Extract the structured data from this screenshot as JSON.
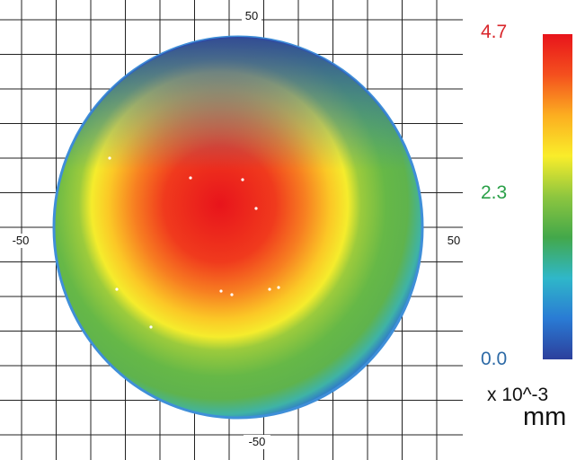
{
  "chart_data": {
    "type": "heatmap",
    "title": "",
    "xlabel": "",
    "ylabel": "",
    "xlim": [
      -75,
      75
    ],
    "ylim": [
      -70,
      70
    ],
    "grid": true,
    "axis_tick_labels": {
      "top": "50",
      "bottom": "-50",
      "left": "-50",
      "right": "50"
    },
    "colorbar": {
      "min": 0.0,
      "mid": 2.3,
      "max": 4.7,
      "labels": [
        "4.7",
        "2.3",
        "0.0"
      ],
      "label_colors": [
        "#d9262b",
        "#2aa048",
        "#2d6aa6"
      ],
      "scale_label": "x 10^-3",
      "unit": "mm",
      "colors": [
        "#e8141b",
        "#f4501e",
        "#fcae20",
        "#f9ed2a",
        "#8dc63f",
        "#43a84a",
        "#2fb7c9",
        "#2a7bd4",
        "#2c3f9c"
      ]
    },
    "surface": {
      "shape": "circular disc",
      "peak_value": 4.7,
      "peak_location": [
        -5,
        3
      ],
      "edge_value": 0.0,
      "radial_profile": [
        {
          "r": 0,
          "value": 4.7
        },
        {
          "r": 15,
          "value": 4.3
        },
        {
          "r": 28,
          "value": 3.6
        },
        {
          "r": 35,
          "value": 3.0
        },
        {
          "r": 45,
          "value": 2.3
        },
        {
          "r": 55,
          "value": 1.6
        },
        {
          "r": 62,
          "value": 0.6
        },
        {
          "r": 64,
          "value": 0.0
        }
      ]
    }
  }
}
